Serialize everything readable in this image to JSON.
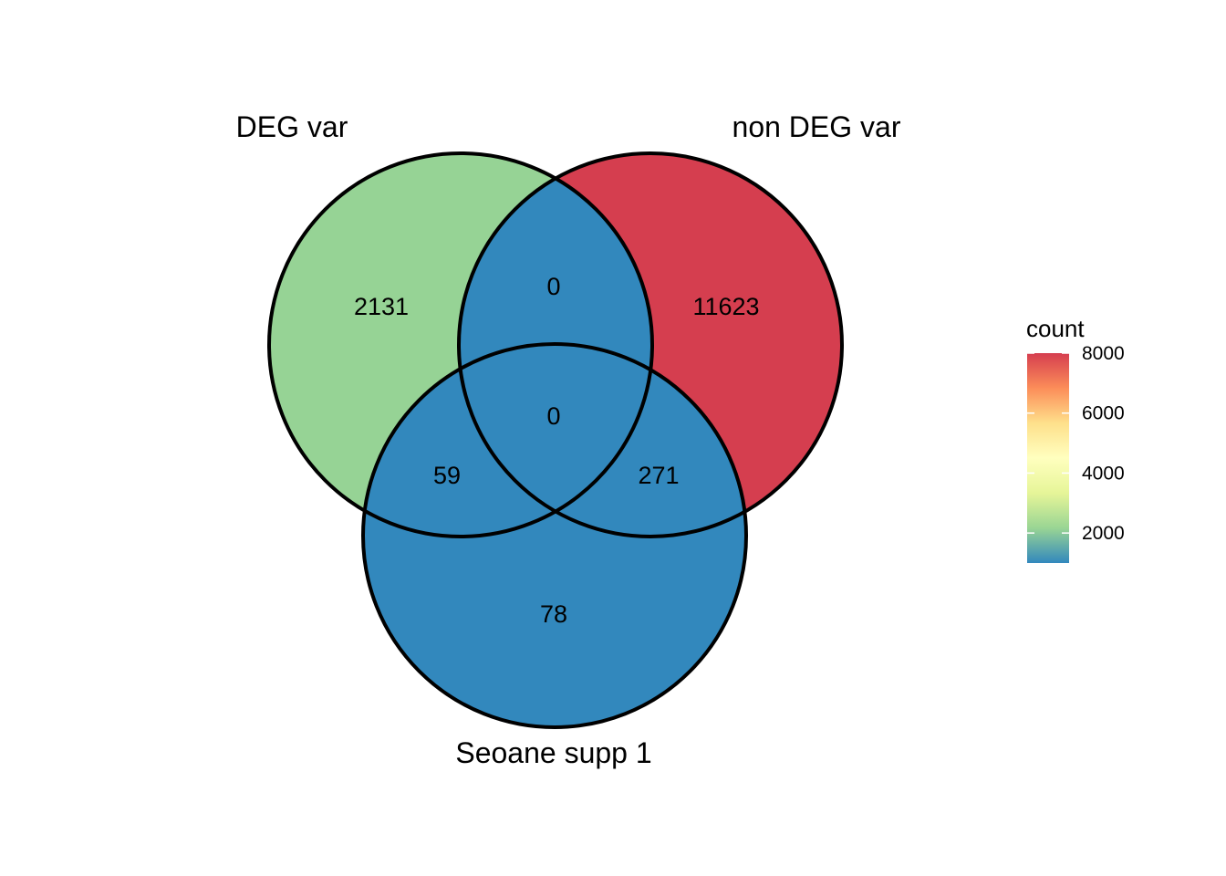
{
  "chart_data": {
    "type": "venn",
    "sets": [
      {
        "name": "DEG var"
      },
      {
        "name": "non DEG var"
      },
      {
        "name": "Seoane supp 1"
      }
    ],
    "regions": [
      {
        "sets": [
          "DEG var"
        ],
        "count": 2131,
        "label": "2131"
      },
      {
        "sets": [
          "non DEG var"
        ],
        "count": 11623,
        "label": "11623"
      },
      {
        "sets": [
          "Seoane supp 1"
        ],
        "count": 78,
        "label": "78"
      },
      {
        "sets": [
          "DEG var",
          "non DEG var"
        ],
        "count": 0,
        "label": "0"
      },
      {
        "sets": [
          "DEG var",
          "Seoane supp 1"
        ],
        "count": 59,
        "label": "59"
      },
      {
        "sets": [
          "non DEG var",
          "Seoane supp 1"
        ],
        "count": 271,
        "label": "271"
      },
      {
        "sets": [
          "DEG var",
          "non DEG var",
          "Seoane supp 1"
        ],
        "count": 0,
        "label": "0"
      }
    ],
    "legend": {
      "title": "count",
      "ticks": [
        {
          "value": 2000,
          "label": "2000"
        },
        {
          "value": 4000,
          "label": "4000"
        },
        {
          "value": 6000,
          "label": "6000"
        },
        {
          "value": 8000,
          "label": "8000"
        }
      ],
      "range": [
        1000,
        8000
      ],
      "palette": [
        "#3288bd",
        "#99d594",
        "#e6f598",
        "#ffffbf",
        "#fee08b",
        "#fc8d59",
        "#d53e4f"
      ],
      "placement": "right"
    }
  }
}
